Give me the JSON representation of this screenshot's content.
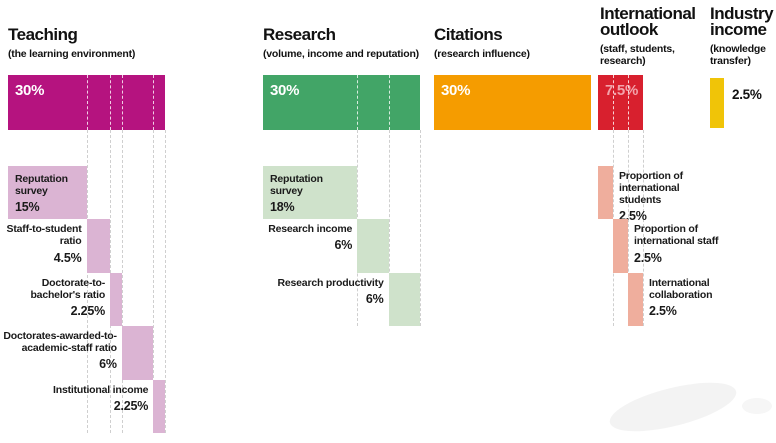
{
  "chart_data": {
    "type": "bar",
    "title": "",
    "layout_hint": "waterfall of ranking-indicator weightings, five columns",
    "columns": [
      {
        "id": "teaching",
        "title": "Teaching",
        "subtitle": "(the learning environment)",
        "total_value": 30,
        "total_label": "30%",
        "bar_color": "#b5137f",
        "sub_bar_color": "#dbb4d3",
        "total_text_color": "#ffffff",
        "labels_side": "left",
        "segments": [
          {
            "label": "Reputation survey",
            "value": 15,
            "pct_label": "15%"
          },
          {
            "label": "Staff-to-student ratio",
            "value": 4.5,
            "pct_label": "4.5%"
          },
          {
            "label": "Doctorate-to-bachelor's ratio",
            "value": 2.25,
            "pct_label": "2.25%"
          },
          {
            "label": "Doctorates-awarded-to-academic-staff ratio",
            "value": 6,
            "pct_label": "6%"
          },
          {
            "label": "Institutional income",
            "value": 2.25,
            "pct_label": "2.25%"
          }
        ]
      },
      {
        "id": "research",
        "title": "Research",
        "subtitle": "(volume, income and reputation)",
        "total_value": 30,
        "total_label": "30%",
        "bar_color": "#42a567",
        "sub_bar_color": "#cfe2cb",
        "total_text_color": "#ffffff",
        "labels_side": "left",
        "segments": [
          {
            "label": "Reputation survey",
            "value": 18,
            "pct_label": "18%"
          },
          {
            "label": "Research income",
            "value": 6,
            "pct_label": "6%"
          },
          {
            "label": "Research productivity",
            "value": 6,
            "pct_label": "6%"
          }
        ]
      },
      {
        "id": "citations",
        "title": "Citations",
        "subtitle": "(research influence)",
        "total_value": 30,
        "total_label": "30%",
        "bar_color": "#f59c00",
        "total_text_color": "#ffffff",
        "segments": []
      },
      {
        "id": "international-outlook",
        "title": "International outlook",
        "subtitle": "(staff, students, research)",
        "total_value": 7.5,
        "total_label": "7.5%",
        "bar_color": "#d8202e",
        "sub_bar_color": "#efae9d",
        "total_text_color": "#f2a3ab",
        "labels_side": "right",
        "segments": [
          {
            "label": "Proportion of international students",
            "value": 2.5,
            "pct_label": "2.5%"
          },
          {
            "label": "Proportion of international staff",
            "value": 2.5,
            "pct_label": "2.5%"
          },
          {
            "label": "International collaboration",
            "value": 2.5,
            "pct_label": "2.5%"
          }
        ]
      },
      {
        "id": "industry-income",
        "title": "Industry income",
        "subtitle": "(knowledge transfer)",
        "total_value": 2.5,
        "total_label": "2.5%",
        "bar_color": "#f0c408",
        "total_text_color": "#111111",
        "total_label_outside": true,
        "segments": []
      }
    ]
  }
}
